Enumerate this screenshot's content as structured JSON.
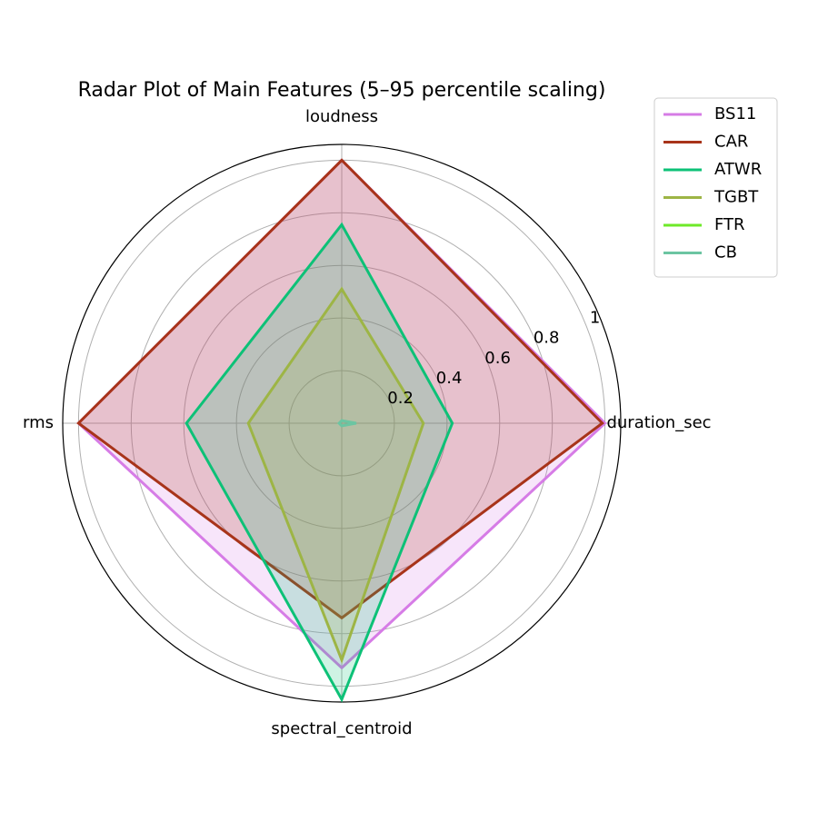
{
  "chart_data": {
    "type": "radar",
    "title": "Radar Plot of Main Features (5–95 percentile scaling)",
    "categories": [
      "duration_sec",
      "loudness",
      "rms",
      "spectral_centroid"
    ],
    "ylim": [
      0,
      1.06
    ],
    "yticks": [
      0.2,
      0.4,
      0.6,
      0.8,
      1.0
    ],
    "grid": true,
    "legend": "upper right",
    "fill_alpha": 0.2,
    "series": [
      {
        "name": "BS11",
        "color": "#d67ce6",
        "values": [
          1.0,
          1.0,
          1.0,
          0.93
        ]
      },
      {
        "name": "CAR",
        "color": "#a8341a",
        "values": [
          0.99,
          1.0,
          1.0,
          0.74
        ]
      },
      {
        "name": "ATWR",
        "color": "#0dc177",
        "values": [
          0.42,
          0.755,
          0.59,
          1.05
        ]
      },
      {
        "name": "TGBT",
        "color": "#9db545",
        "values": [
          0.31,
          0.51,
          0.355,
          0.9
        ]
      },
      {
        "name": "FTR",
        "color": "#6ee928",
        "values": [
          0.0,
          0.0,
          0.0,
          0.0
        ]
      },
      {
        "name": "CB",
        "color": "#6cc5a2",
        "values": [
          0.055,
          0.01,
          0.01,
          0.01
        ]
      }
    ]
  }
}
